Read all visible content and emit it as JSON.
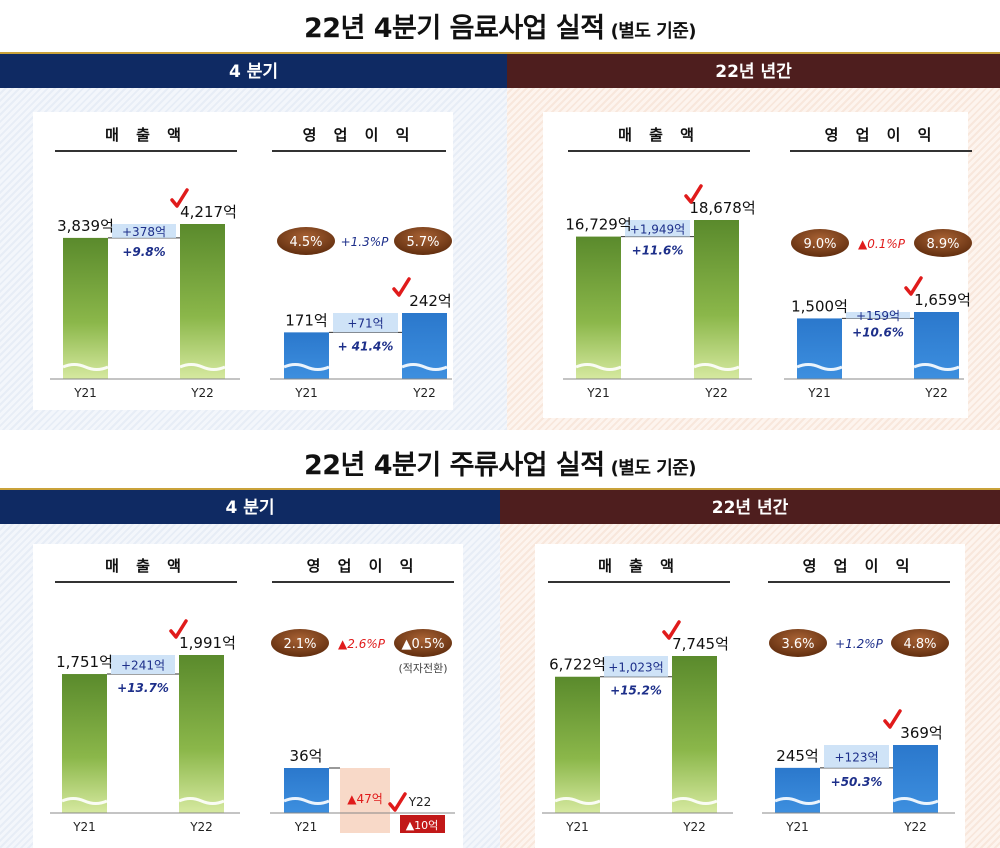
{
  "section1": {
    "title": "22년 4분기 음료사업 실적",
    "subtitle": "(별도 기준)"
  },
  "section2": {
    "title": "22년 4분기 주류사업 실적",
    "subtitle": "(별도 기준)"
  },
  "headers": {
    "quarter": "4 분기",
    "annual": "22년 년간"
  },
  "labels": {
    "sales": "매 출 액",
    "op": "영 업 이 익",
    "y21": "Y21",
    "y22": "Y22"
  },
  "chart_data": [
    {
      "type": "bar",
      "id": "bev_q_sales",
      "title": "매 출 액",
      "categories": [
        "Y21",
        "Y22"
      ],
      "values": [
        3839,
        4217
      ],
      "value_labels": [
        "3,839억",
        "4,217억"
      ],
      "delta": "+378억",
      "delta_pct": "+9.8%"
    },
    {
      "type": "bar",
      "id": "bev_q_op",
      "title": "영 업 이 익",
      "categories": [
        "Y21",
        "Y22"
      ],
      "values": [
        171,
        242
      ],
      "value_labels": [
        "171억",
        "242억"
      ],
      "delta": "+71억",
      "delta_pct": "+ 41.4%",
      "margins": [
        "4.5%",
        "5.7%"
      ],
      "margin_change": "+1.3%P"
    },
    {
      "type": "bar",
      "id": "bev_a_sales",
      "title": "매 출 액",
      "categories": [
        "Y21",
        "Y22"
      ],
      "values": [
        16729,
        18678
      ],
      "value_labels": [
        "16,729억",
        "18,678억"
      ],
      "delta": "+1,949억",
      "delta_pct": "+11.6%"
    },
    {
      "type": "bar",
      "id": "bev_a_op",
      "title": "영 업 이 익",
      "categories": [
        "Y21",
        "Y22"
      ],
      "values": [
        1500,
        1659
      ],
      "value_labels": [
        "1,500억",
        "1,659억"
      ],
      "delta": "+159억",
      "delta_pct": "+10.6%",
      "margins": [
        "9.0%",
        "8.9%"
      ],
      "margin_change": "▲0.1%P"
    },
    {
      "type": "bar",
      "id": "liq_q_sales",
      "title": "매 출 액",
      "categories": [
        "Y21",
        "Y22"
      ],
      "values": [
        1751,
        1991
      ],
      "value_labels": [
        "1,751억",
        "1,991억"
      ],
      "delta": "+241억",
      "delta_pct": "+13.7%"
    },
    {
      "type": "bar",
      "id": "liq_q_op",
      "title": "영 업 이 익",
      "categories": [
        "Y21",
        "Y22"
      ],
      "values": [
        36,
        -10
      ],
      "value_labels": [
        "36억",
        "▲10억"
      ],
      "delta": "▲47억",
      "margins": [
        "2.1%",
        "▲0.5%"
      ],
      "margin_change": "▲2.6%P",
      "note": "(적자전환)"
    },
    {
      "type": "bar",
      "id": "liq_a_sales",
      "title": "매 출 액",
      "categories": [
        "Y21",
        "Y22"
      ],
      "values": [
        6722,
        7745
      ],
      "value_labels": [
        "6,722억",
        "7,745억"
      ],
      "delta": "+1,023억",
      "delta_pct": "+15.2%"
    },
    {
      "type": "bar",
      "id": "liq_a_op",
      "title": "영 업 이 익",
      "categories": [
        "Y21",
        "Y22"
      ],
      "values": [
        245,
        369
      ],
      "value_labels": [
        "245억",
        "369억"
      ],
      "delta": "+123억",
      "delta_pct": "+50.3%",
      "margins": [
        "3.6%",
        "4.8%"
      ],
      "margin_change": "+1.2%P"
    }
  ],
  "colors": {
    "green_top": "#5e8f2e",
    "green_bottom": "#c9e08a",
    "blue": "#2f7fd0",
    "navy": "#0f2a63",
    "brown": "#4e1e1e",
    "oval": "#7a3e14",
    "check": "#e01b1b",
    "delta_box": "#cfe3f7",
    "neg_box": "#f8d9c8",
    "neg_bar": "#c21818",
    "pos_text": "#1d2f8a",
    "neg_text": "#e01b1b"
  }
}
